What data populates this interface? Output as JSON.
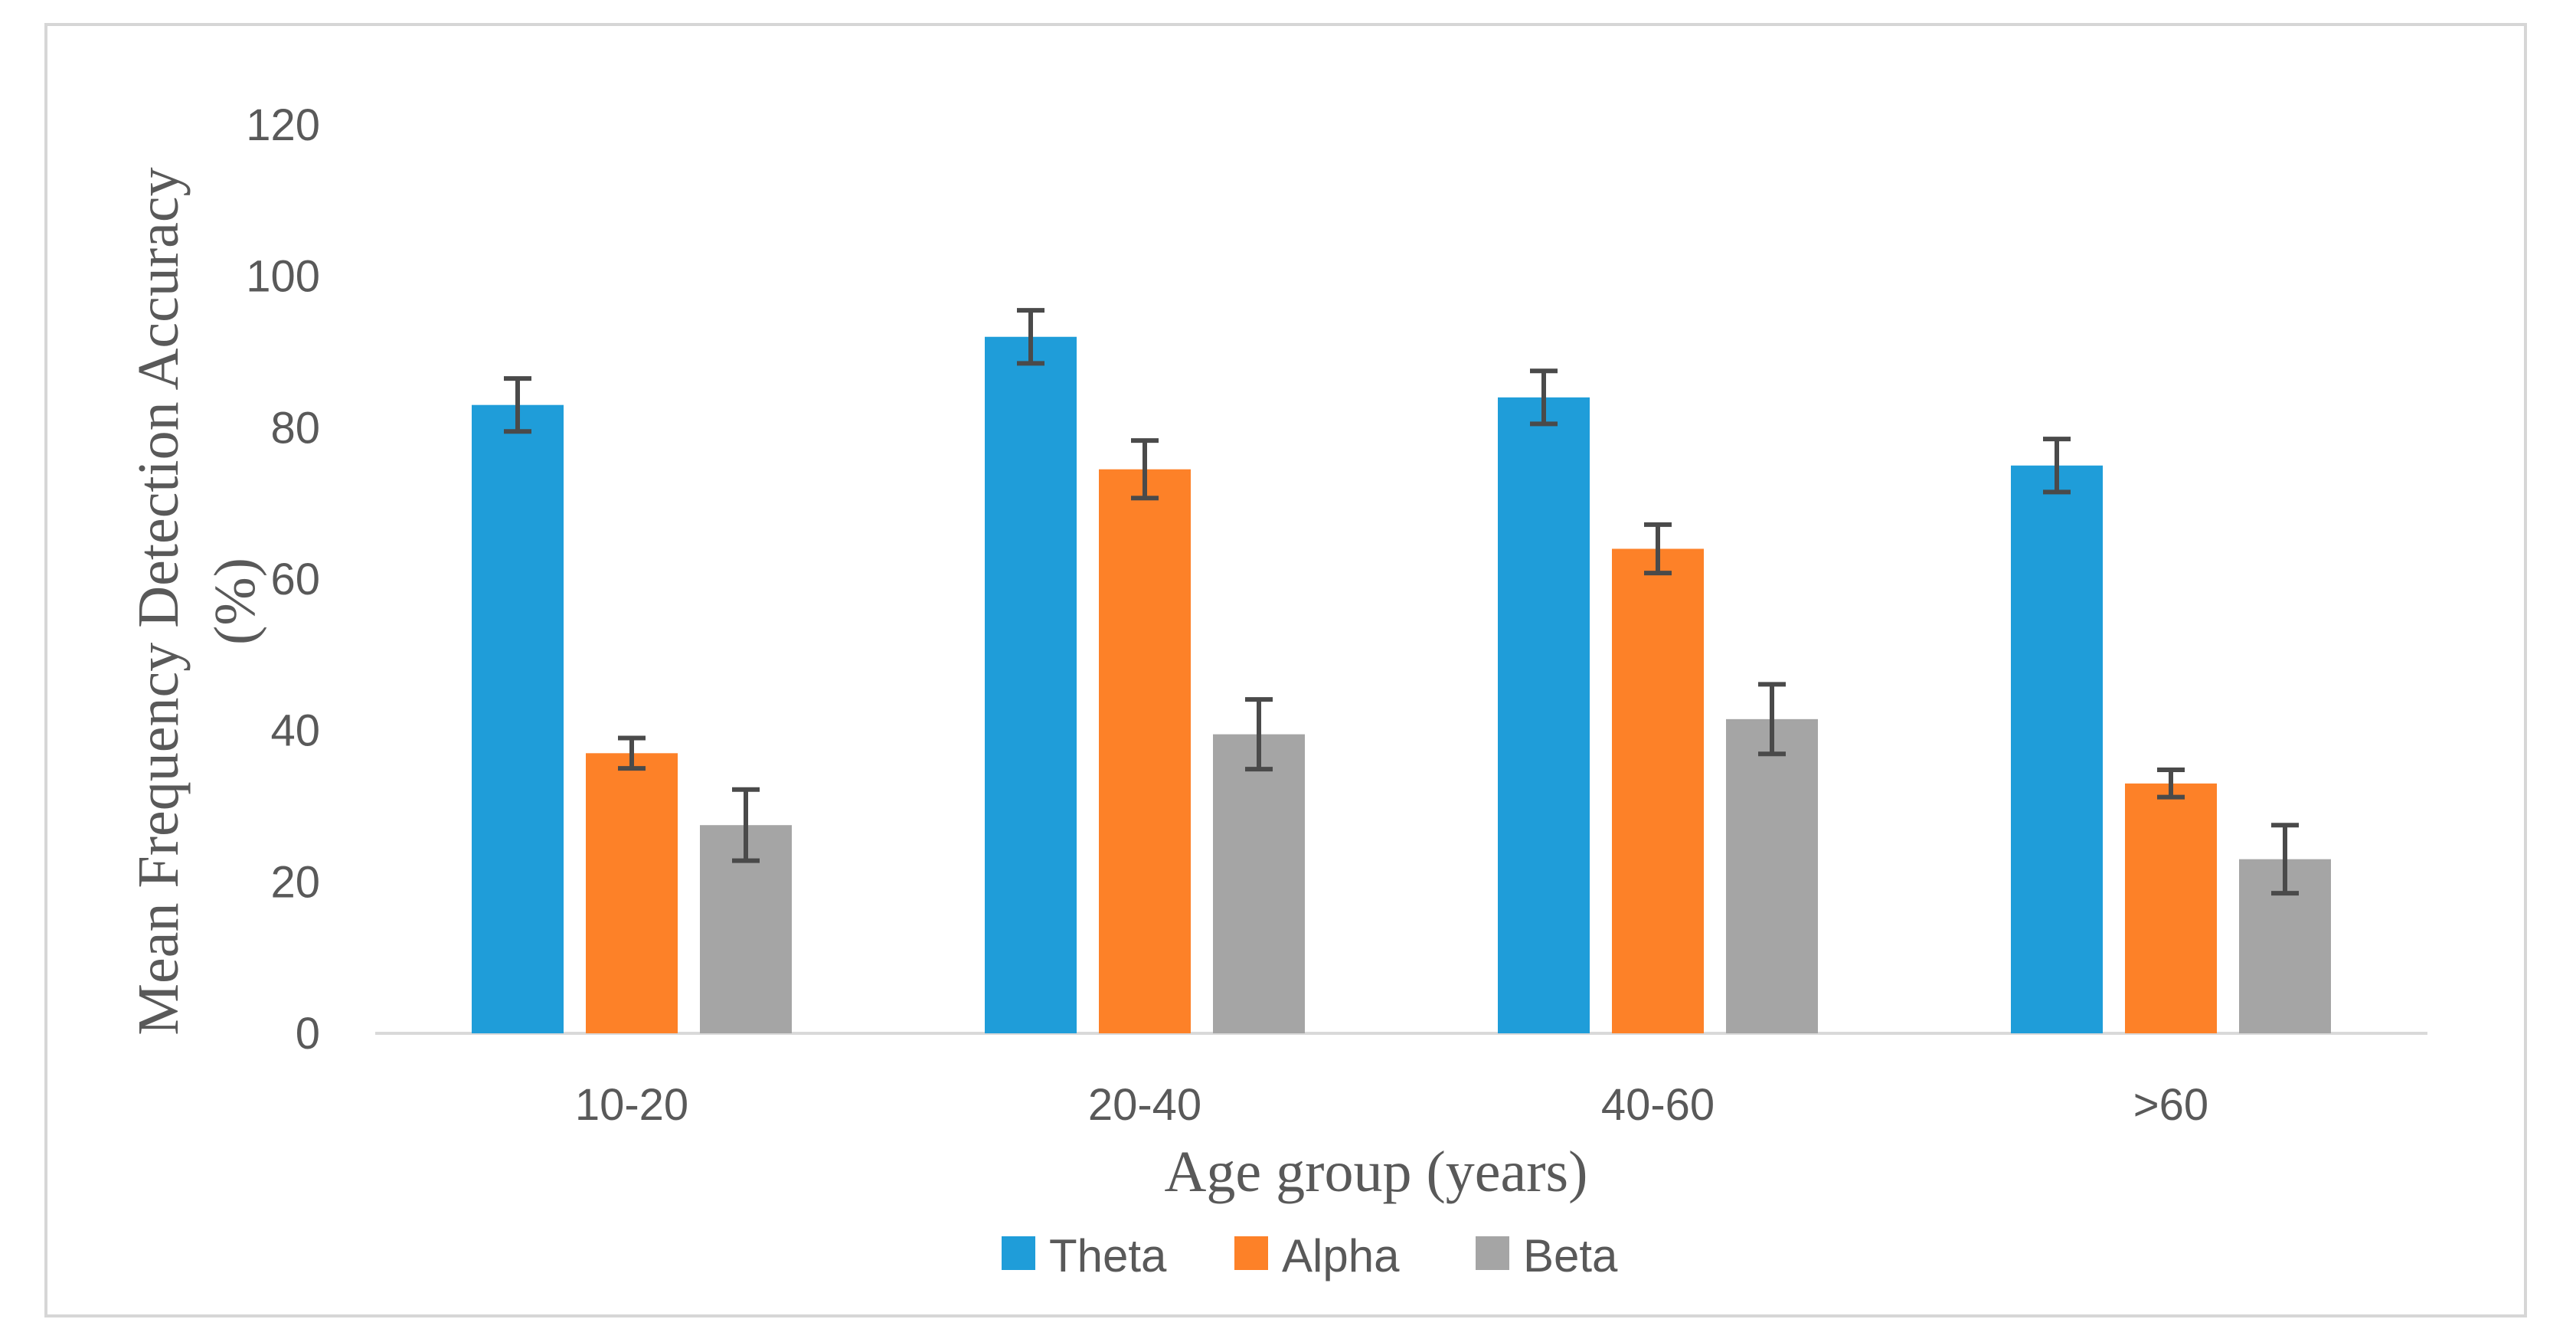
{
  "chart_data": {
    "type": "bar",
    "title": "",
    "xlabel": "Age group (years)",
    "ylabel_lines": [
      "Mean Frequency Detection Accuracy",
      "(%)"
    ],
    "categories": [
      "10-20",
      "20-40",
      "40-60",
      ">60"
    ],
    "ylim": [
      0,
      120
    ],
    "yticks": [
      0,
      20,
      40,
      60,
      80,
      100,
      120
    ],
    "grid": false,
    "legend_position": "bottom",
    "series": [
      {
        "name": "Theta",
        "color": "#1f9dd9",
        "values": [
          83,
          92,
          84,
          75
        ],
        "errors": [
          3.5,
          3.5,
          3.5,
          3.5
        ]
      },
      {
        "name": "Alpha",
        "color": "#fd8128",
        "values": [
          37,
          74.5,
          64,
          33
        ],
        "errors": [
          2.0,
          3.8,
          3.2,
          1.8
        ]
      },
      {
        "name": "Beta",
        "color": "#a5a5a5",
        "values": [
          27.5,
          39.5,
          41.5,
          23
        ],
        "errors": [
          4.7,
          4.6,
          4.6,
          4.5
        ]
      }
    ],
    "error_bar_color": "#4a4a4a",
    "axis_color": "#d9d9d9"
  }
}
